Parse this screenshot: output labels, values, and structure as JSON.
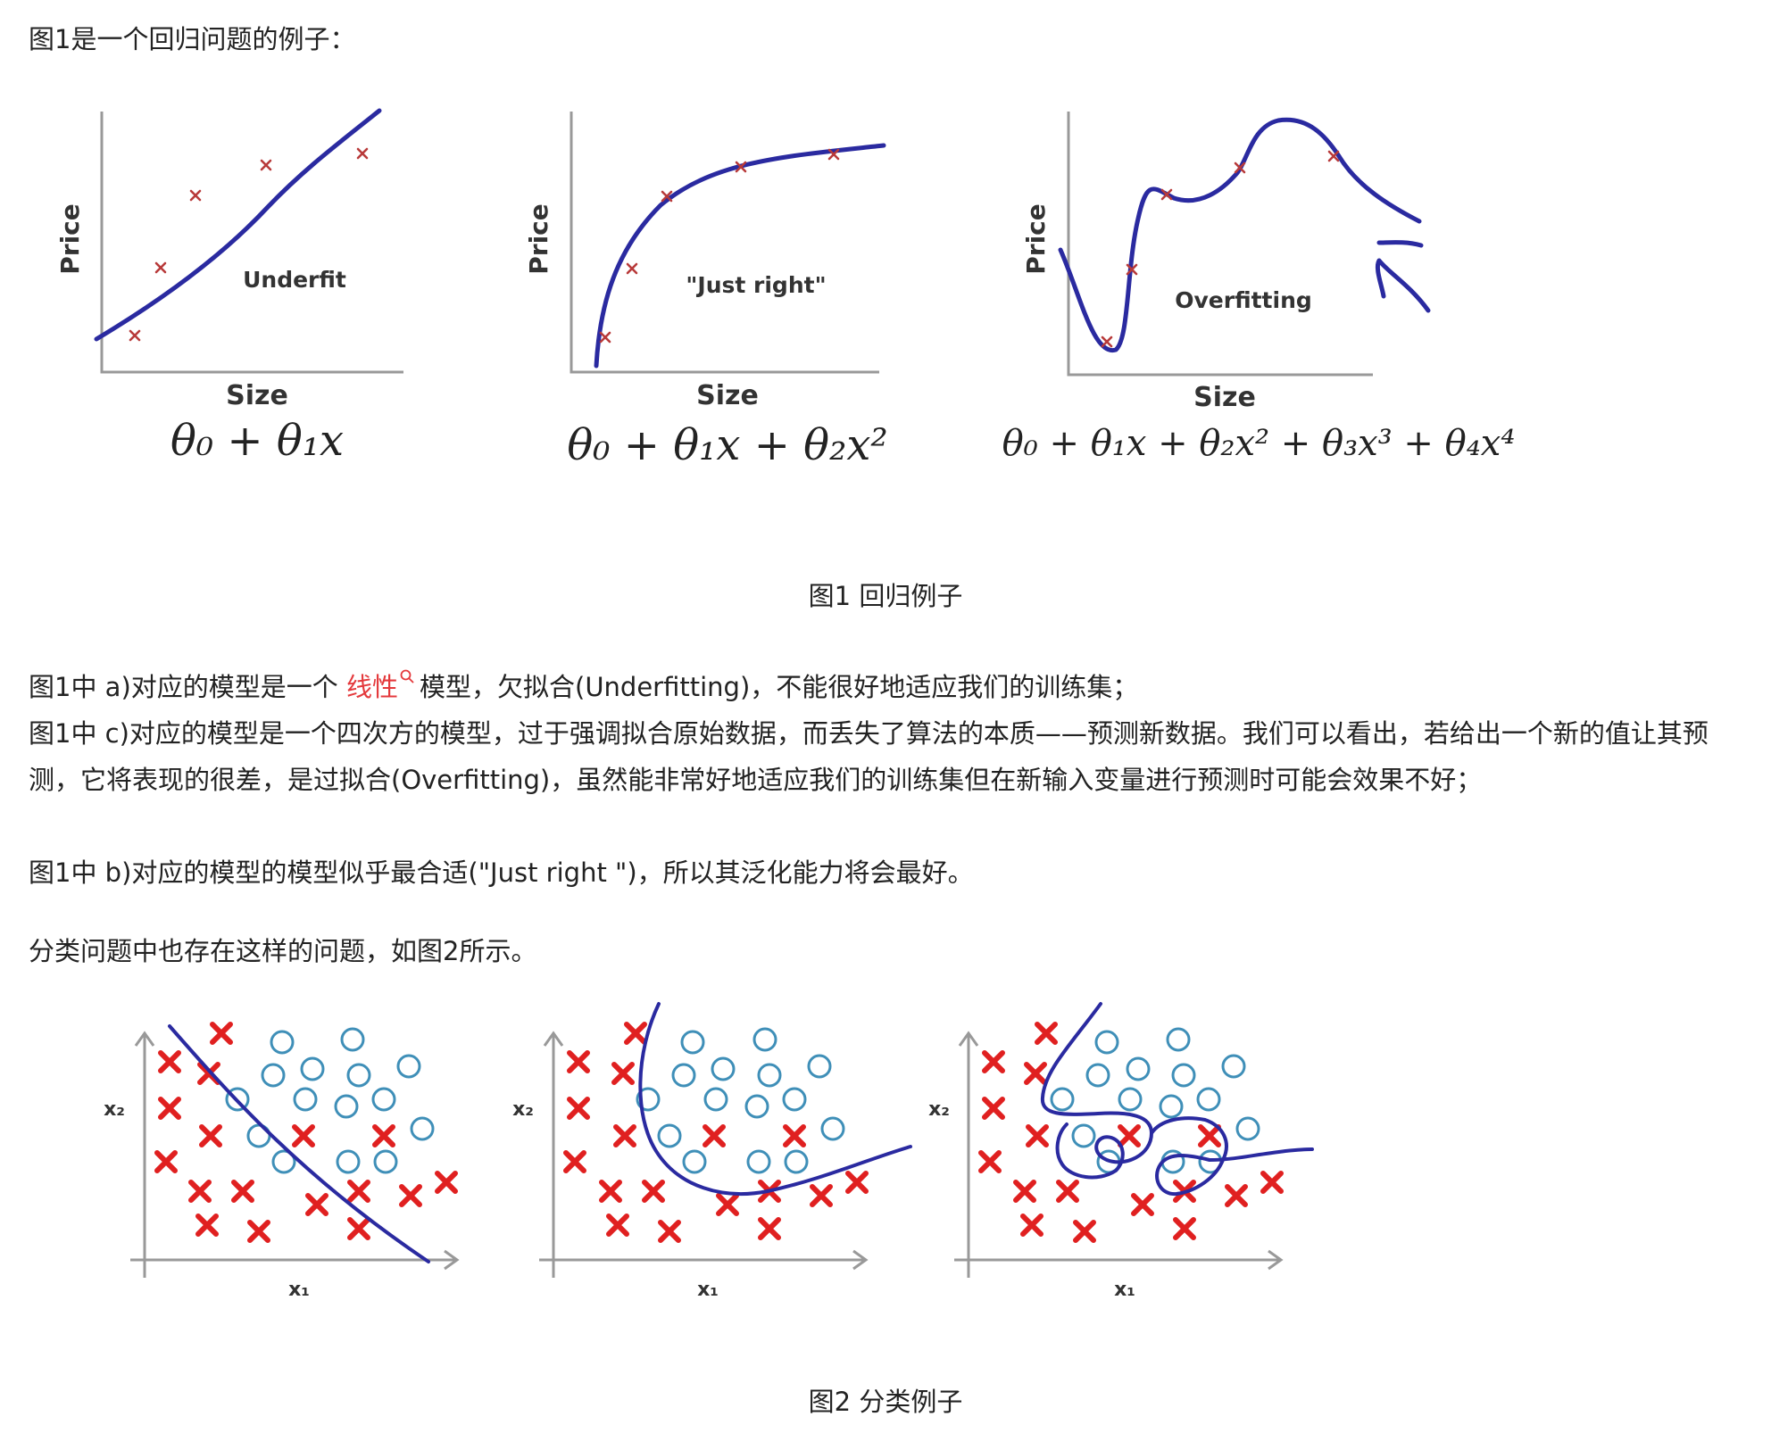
{
  "intro": "图1是一个回归问题的例子：",
  "figure1": {
    "caption": "图1 回归例子",
    "panels": [
      {
        "label": "Underfit",
        "xlabel": "Size",
        "ylabel": "Price",
        "formula": "θ₀ + θ₁x"
      },
      {
        "label": "\"Just right\"",
        "xlabel": "Size",
        "ylabel": "Price",
        "formula": "θ₀ + θ₁x + θ₂x²"
      },
      {
        "label": "Overfitting",
        "xlabel": "Size",
        "ylabel": "Price",
        "formula": "θ₀ + θ₁x + θ₂x² + θ₃x³ + θ₄x⁴"
      }
    ]
  },
  "paragraphs": {
    "p1_before": "图1中 a)对应的模型是一个",
    "p1_link": "线性",
    "p1_after": "模型，欠拟合(Underfitting)，不能很好地适应我们的训练集；",
    "p2": "图1中 c)对应的模型是一个四次方的模型，过于强调拟合原始数据，而丢失了算法的本质——预测新数据。我们可以看出，若给出一个新的值让其预测，它将表现的很差，是过拟合(Overfitting)，虽然能非常好地适应我们的训练集但在新输入变量进行预测时可能会效果不好；",
    "p3": "图1中 b)对应的模型的模型似乎最合适(\"Just right \")，所以其泛化能力将会最好。",
    "p4": "分类问题中也存在这样的问题，如图2所示。"
  },
  "figure2": {
    "caption": "图2 分类例子",
    "xlabel": "x₁",
    "ylabel": "x₂"
  },
  "colors": {
    "link": "#e4393c",
    "curve": "#2a2aa0",
    "cross": "#e02020",
    "circle": "#3f8fb8"
  },
  "icons": {
    "link_icon": "search-icon"
  }
}
